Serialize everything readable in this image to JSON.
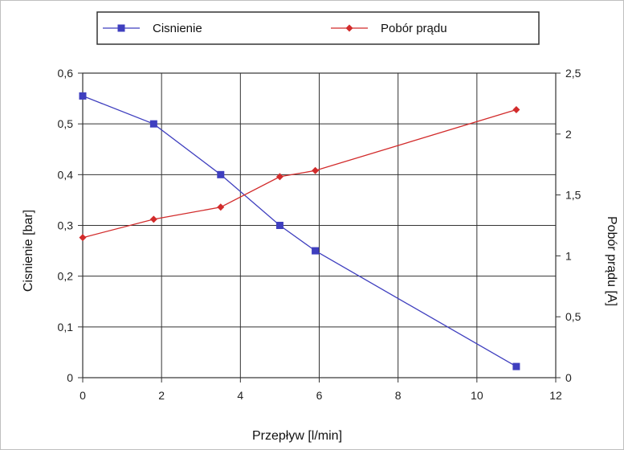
{
  "chart_data": {
    "type": "line",
    "title": "",
    "xlabel": "Przepływ  [l/min]",
    "ylabel": "Cisnienie  [bar]",
    "y2label": "Pobór prądu  [A]",
    "xlim": [
      0,
      12
    ],
    "ylim": [
      0,
      0.6
    ],
    "y2lim": [
      0,
      2.5
    ],
    "x_ticks": [
      "0",
      "2",
      "4",
      "6",
      "8",
      "10",
      "12"
    ],
    "y_ticks": [
      "0",
      "0,1",
      "0,2",
      "0,3",
      "0,4",
      "0,5",
      "0,6"
    ],
    "y2_ticks": [
      "0",
      "0,5",
      "1",
      "1,5",
      "2",
      "2,5"
    ],
    "grid": true,
    "legend_position": "top",
    "series": [
      {
        "name": "Cisnienie",
        "axis": "left",
        "color": "#3f3fbf",
        "marker": "square",
        "x": [
          0,
          1.8,
          3.5,
          5,
          5.9,
          11
        ],
        "y": [
          0.555,
          0.5,
          0.4,
          0.3,
          0.25,
          0.022
        ]
      },
      {
        "name": "Pobór prądu",
        "axis": "right",
        "color": "#d22b2b",
        "marker": "diamond",
        "x": [
          0,
          1.8,
          3.5,
          5,
          5.9,
          11
        ],
        "y": [
          1.15,
          1.3,
          1.4,
          1.65,
          1.7,
          2.2
        ]
      }
    ]
  }
}
